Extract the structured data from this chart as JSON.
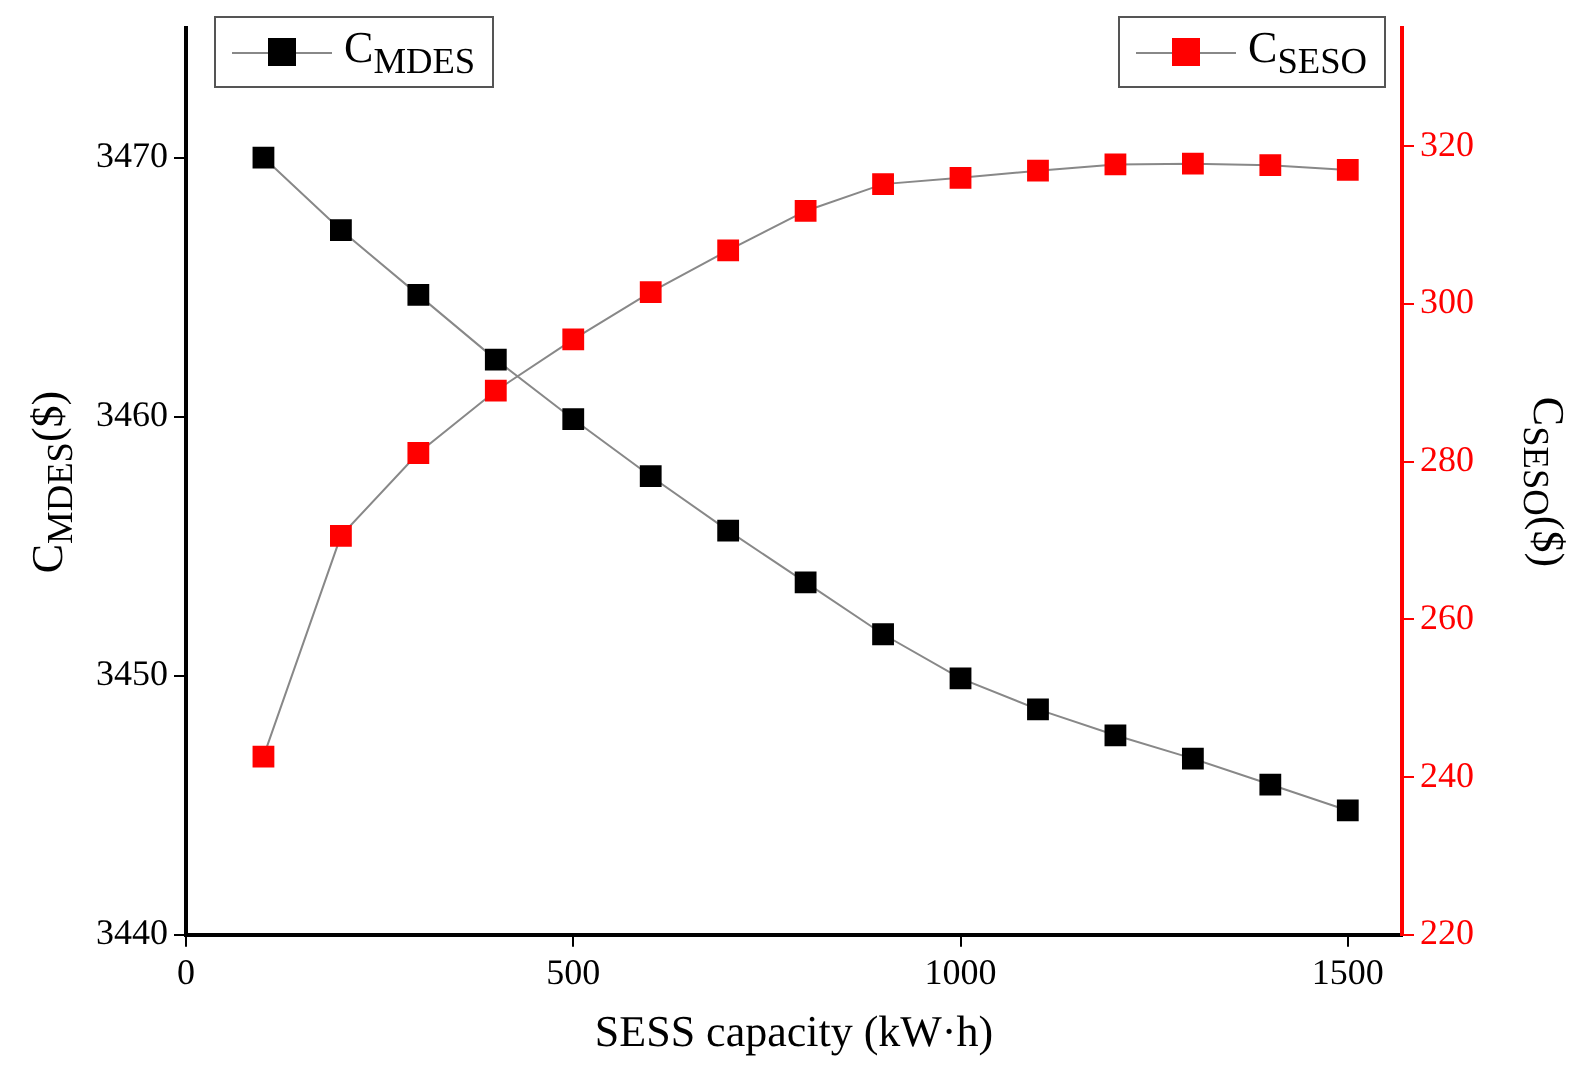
{
  "chart_data": {
    "type": "line",
    "xlabel": "SESS capacity (kW·h)",
    "ylabel": "C$_{MDES}$($)",
    "y2label": "C$_{SESO}$($)",
    "x": [
      100,
      200,
      300,
      400,
      500,
      600,
      700,
      800,
      900,
      1000,
      1100,
      1200,
      1300,
      1400,
      1500
    ],
    "series": [
      {
        "name": "C$_{MDES}$",
        "color": "#000000",
        "values": [
          3470.0,
          3467.2,
          3464.7,
          3462.2,
          3459.9,
          3457.7,
          3455.6,
          3453.6,
          3451.6,
          3449.9,
          3448.7,
          3447.7,
          3446.8,
          3445.8,
          3444.8
        ]
      },
      {
        "name": "C$_{SESO}$",
        "color": "#ff0000",
        "axis": "y2",
        "values": [
          242.6,
          270.6,
          281.1,
          289.0,
          295.5,
          301.5,
          306.8,
          311.8,
          315.2,
          316.0,
          316.9,
          317.7,
          317.8,
          317.6,
          317.0
        ]
      }
    ],
    "xlim": [
      0,
      1570
    ],
    "xticks": [
      0,
      500,
      1000,
      1500
    ],
    "ylim": [
      3440,
      3475
    ],
    "yticks": [
      3440,
      3450,
      3460,
      3470
    ],
    "y2lim": [
      220,
      335
    ],
    "y2ticks": [
      220,
      240,
      260,
      280,
      300,
      320
    ],
    "grid": false,
    "legend": "top",
    "marker": "square",
    "line_style": "solid"
  }
}
